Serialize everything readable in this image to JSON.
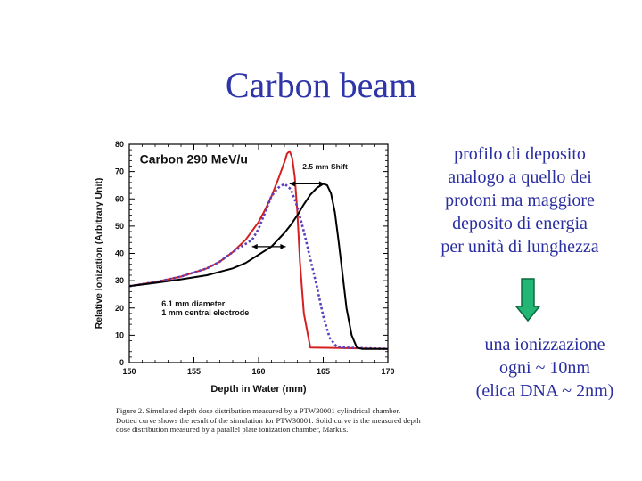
{
  "title": "Carbon beam",
  "side_note": {
    "lines": [
      "profilo di deposito",
      "analogo a quello dei",
      "protoni ma maggiore",
      "deposito di energia",
      "per unità di lunghezza"
    ]
  },
  "arrow": {
    "icon": "down-arrow-icon",
    "fill": "#22b573",
    "stroke": "#0b6b3f"
  },
  "bottom_note": {
    "lines": [
      "una ionizzazione",
      "ogni ~  10nm",
      "(elica DNA ~ 2nm)"
    ]
  },
  "caption": {
    "lines": [
      "Figure 2.   Simulated depth dose distribution measured by a PTW30001 cylindrical chamber.",
      "Dotted curve shows the result of the simulation for PTW30001.  Solid curve is the measured depth",
      "dose distribution measured by a parallel plate ionization chamber, Markus."
    ]
  },
  "chart_data": {
    "type": "line",
    "title": "Carbon 290 MeV/u",
    "xlabel": "Depth in Water (mm)",
    "ylabel": "Relative Ionization (Arbitrary Unit)",
    "xlim": [
      150,
      170
    ],
    "ylim": [
      0,
      80
    ],
    "xticks": [
      150,
      155,
      160,
      165,
      170
    ],
    "yticks": [
      0,
      10,
      20,
      30,
      40,
      50,
      60,
      70,
      80
    ],
    "annotations": {
      "shift": "2.5 mm Shift",
      "diameter": "6.1 mm diameter",
      "electrode": "1 mm central electrode"
    },
    "series": [
      {
        "color": "#d42020",
        "style": "solid",
        "x": [
          150,
          152,
          154,
          156,
          157,
          158,
          159,
          160,
          160.5,
          161,
          161.5,
          162,
          162.2,
          162.4,
          162.6,
          162.8,
          163,
          163.2,
          163.5,
          164,
          170
        ],
        "y": [
          28,
          29.5,
          31.5,
          34.5,
          37,
          40.5,
          45,
          51.5,
          56,
          61,
          67,
          73.5,
          76.5,
          77.5,
          75,
          68,
          55,
          37,
          18,
          5.5,
          5
        ]
      },
      {
        "color": "#5a3fc0",
        "style": "dotted",
        "x": [
          150,
          152,
          154,
          156,
          157,
          158,
          159,
          159.5,
          160,
          160.5,
          161,
          161.5,
          162,
          162.5,
          163,
          163.5,
          164,
          164.5,
          165,
          165.5,
          166,
          166.5,
          170
        ],
        "y": [
          28,
          29.5,
          31.5,
          34.5,
          37,
          40.5,
          43.5,
          45,
          49,
          55,
          61,
          64,
          65.5,
          63.5,
          57,
          48,
          38,
          28,
          17,
          9,
          6,
          5.5,
          5
        ]
      },
      {
        "color": "#000000",
        "style": "solid",
        "x": [
          150,
          152,
          154,
          156,
          158,
          159,
          160,
          161,
          162,
          162.5,
          163,
          163.5,
          164,
          164.5,
          165,
          165.3,
          165.6,
          165.9,
          166.2,
          166.5,
          166.8,
          167.2,
          167.6,
          168,
          170
        ],
        "y": [
          28,
          29.2,
          30.5,
          32,
          34.5,
          36.5,
          39.5,
          42.5,
          47.5,
          50.5,
          54,
          58,
          61.5,
          64,
          65.5,
          65,
          62,
          55,
          44,
          32,
          20,
          10,
          5.5,
          5,
          5
        ]
      }
    ]
  }
}
